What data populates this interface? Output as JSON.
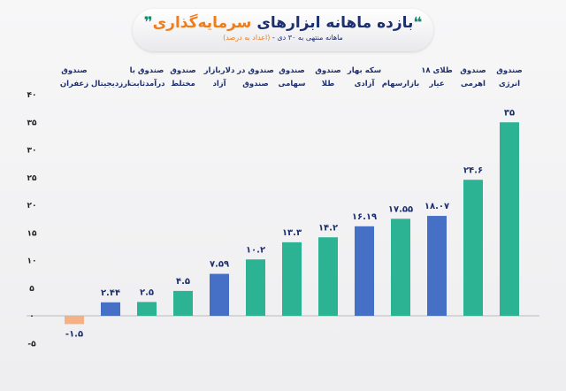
{
  "header": {
    "quote_left": "❝",
    "title_part1": "بازده ماهانه ابزارهای",
    "title_part2": "سرمایه‌گذاری",
    "quote_right": "❞",
    "subtitle_part1": "ماهانه منتهی به ۳۰ دی - ",
    "subtitle_part2": "(اعداد به درصد)"
  },
  "chart_data": {
    "type": "bar",
    "categories": [
      [
        "صندوق",
        "زعفران"
      ],
      [
        "",
        "ارزدیجیتال"
      ],
      [
        "صندوق با",
        "درآمدثابت"
      ],
      [
        "صندوق",
        "مختلط"
      ],
      [
        "دلاربازار",
        "آزاد"
      ],
      [
        "صندوق در",
        "صندوق"
      ],
      [
        "صندوق",
        "سهامی"
      ],
      [
        "صندوق",
        "طلا"
      ],
      [
        "سکه بهار",
        "آزادی"
      ],
      [
        "",
        "بازارسهام"
      ],
      [
        "طلای ۱۸",
        "عیار"
      ],
      [
        "صندوق",
        "اهرمی"
      ],
      [
        "صندوق",
        "انرژی"
      ]
    ],
    "values": [
      -1.5,
      2.44,
      2.5,
      4.5,
      7.59,
      10.2,
      13.3,
      14.2,
      16.19,
      17.55,
      18.07,
      24.6,
      35
    ],
    "value_labels": [
      "-۱.۵",
      "۲.۴۴",
      "۲.۵",
      "۴.۵",
      "۷.۵۹",
      "۱۰.۲",
      "۱۳.۳",
      "۱۴.۲",
      "۱۶.۱۹",
      "۱۷.۵۵",
      "۱۸.۰۷",
      "۲۴.۶",
      "۳۵"
    ],
    "bar_colors": [
      "#f5b183",
      "#4670c6",
      "#2bb394",
      "#2bb394",
      "#4670c6",
      "#2bb394",
      "#2bb394",
      "#2bb394",
      "#4670c6",
      "#2bb394",
      "#4670c6",
      "#2bb394",
      "#2bb394"
    ],
    "ylim": [
      -5,
      40
    ],
    "yticks": [
      -5,
      0,
      5,
      10,
      15,
      20,
      25,
      30,
      35,
      40
    ],
    "ytick_labels": [
      "-۵",
      "۰",
      "۵",
      "۱۰",
      "۱۵",
      "۲۰",
      "۲۵",
      "۳۰",
      "۳۵",
      "۴۰"
    ],
    "grid": false,
    "title": "بازده ماهانه ابزارهای سرمایه‌گذاری",
    "subtitle": "ماهانه منتهی به ۳۰ دی - (اعداد به درصد)"
  }
}
